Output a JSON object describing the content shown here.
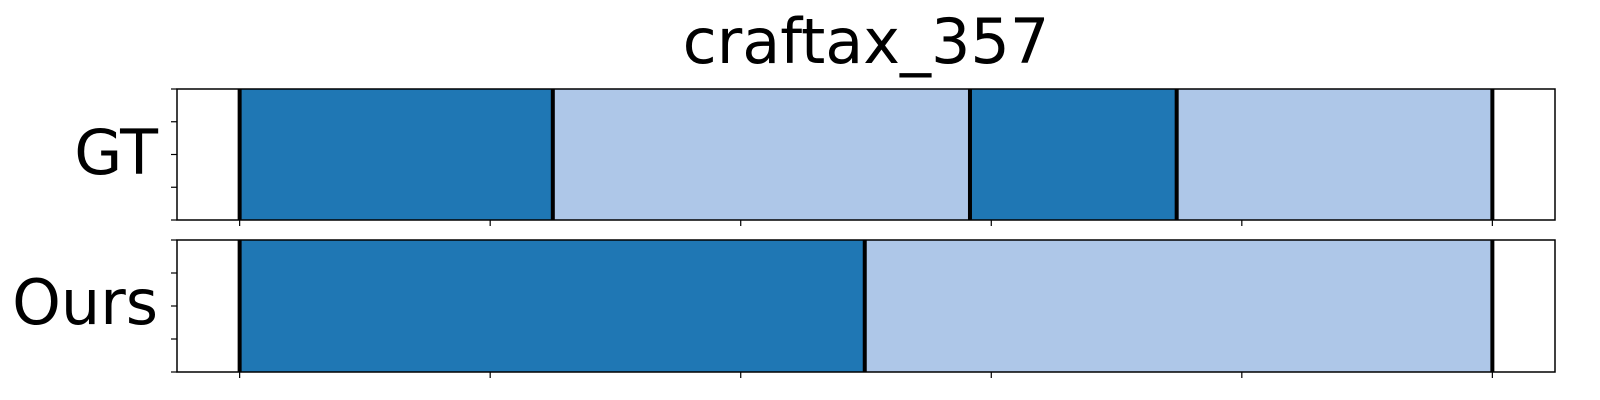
{
  "chart_data": {
    "type": "segmentation-timeline",
    "title": "craftax_357",
    "colors": {
      "dark": "#1f77b4",
      "light": "#aec7e8"
    },
    "xlim": [
      -0.05,
      1.05
    ],
    "x_ticks": [
      0,
      0.2,
      0.4,
      0.6,
      0.8,
      1.0
    ],
    "y_ticks": [
      0,
      0.25,
      0.5,
      0.75,
      1.0
    ],
    "rows": [
      {
        "label": "GT",
        "boundaries": [
          0,
          0.25,
          0.583,
          0.748,
          1.0
        ],
        "segments": [
          {
            "start": 0,
            "end": 0.25,
            "color": "dark"
          },
          {
            "start": 0.25,
            "end": 0.583,
            "color": "light"
          },
          {
            "start": 0.583,
            "end": 0.748,
            "color": "dark"
          },
          {
            "start": 0.748,
            "end": 1.0,
            "color": "light"
          }
        ]
      },
      {
        "label": "Ours",
        "boundaries": [
          0,
          0.499,
          1.0
        ],
        "segments": [
          {
            "start": 0,
            "end": 0.499,
            "color": "dark"
          },
          {
            "start": 0.499,
            "end": 1.0,
            "color": "light"
          }
        ]
      }
    ]
  }
}
